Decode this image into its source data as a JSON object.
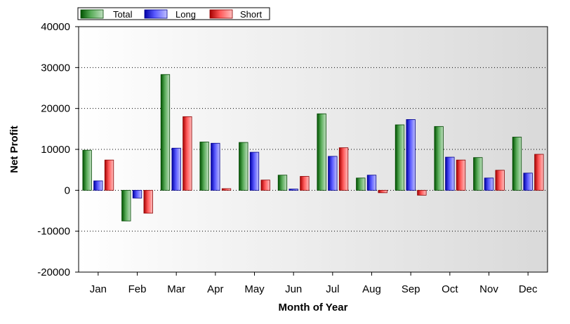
{
  "chart_data": {
    "type": "bar",
    "xlabel": "Month of Year",
    "ylabel": "Net Profit",
    "ylim": [
      -20000,
      40000
    ],
    "yticks": [
      -20000,
      -10000,
      0,
      10000,
      20000,
      30000,
      40000
    ],
    "grid": "horizontal-dotted",
    "legend": "top-left",
    "categories": [
      "Jan",
      "Feb",
      "Mar",
      "Apr",
      "May",
      "Jun",
      "Jul",
      "Aug",
      "Sep",
      "Oct",
      "Nov",
      "Dec"
    ],
    "series": [
      {
        "name": "Total",
        "color": "#008000",
        "values": [
          9800,
          -7500,
          28300,
          11800,
          11700,
          3700,
          18700,
          3000,
          16000,
          15600,
          8000,
          13000
        ]
      },
      {
        "name": "Long",
        "color": "#0000ff",
        "values": [
          2300,
          -1900,
          10300,
          11500,
          9300,
          300,
          8300,
          3700,
          17300,
          8100,
          3000,
          4200
        ]
      },
      {
        "name": "Short",
        "color": "#ff0000",
        "values": [
          7400,
          -5600,
          18000,
          400,
          2500,
          3400,
          10400,
          -600,
          -1200,
          7400,
          4900,
          8800
        ]
      }
    ]
  }
}
